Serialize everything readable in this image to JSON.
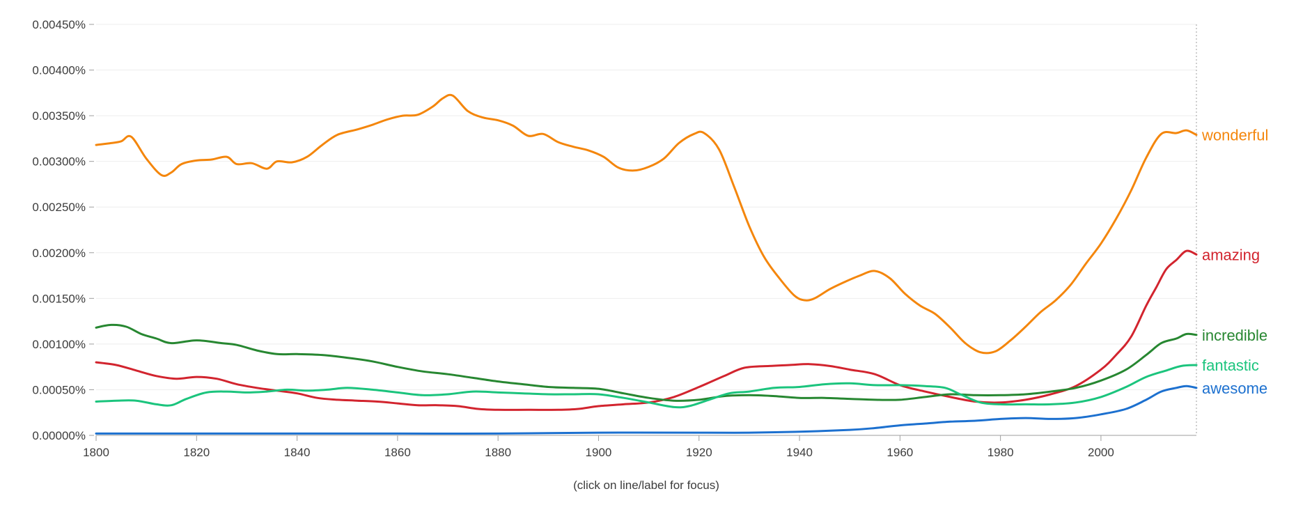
{
  "chart_data": {
    "type": "line",
    "title": "",
    "xlabel": "",
    "ylabel": "",
    "xlim": [
      1800,
      2019
    ],
    "ylim": [
      0,
      0.0045
    ],
    "x_ticks": [
      1800,
      1820,
      1840,
      1860,
      1880,
      1900,
      1920,
      1940,
      1960,
      1980,
      2000
    ],
    "x_tick_labels": [
      "1800",
      "1820",
      "1840",
      "1860",
      "1880",
      "1900",
      "1920",
      "1940",
      "1960",
      "1980",
      "2000"
    ],
    "y_ticks": [
      0,
      0.0005,
      0.001,
      0.0015,
      0.002,
      0.0025,
      0.003,
      0.0035,
      0.004,
      0.0045
    ],
    "y_tick_labels": [
      "0.00000%",
      "0.00050%",
      "0.00100%",
      "0.00150%",
      "0.00200%",
      "0.00250%",
      "0.00300%",
      "0.00350%",
      "0.00400%",
      "0.00450%"
    ],
    "grid": true,
    "legend": "right-end-labels",
    "footnote": "(click on line/label for focus)",
    "series": [
      {
        "name": "wonderful",
        "color": "#f4860c",
        "points": [
          [
            1800,
            0.00318
          ],
          [
            1803,
            0.0032
          ],
          [
            1805,
            0.00322
          ],
          [
            1807,
            0.00327
          ],
          [
            1810,
            0.00303
          ],
          [
            1813,
            0.00285
          ],
          [
            1815,
            0.00288
          ],
          [
            1817,
            0.00297
          ],
          [
            1820,
            0.00301
          ],
          [
            1823,
            0.00302
          ],
          [
            1826,
            0.00305
          ],
          [
            1828,
            0.00297
          ],
          [
            1831,
            0.00298
          ],
          [
            1834,
            0.00292
          ],
          [
            1836,
            0.003
          ],
          [
            1839,
            0.00299
          ],
          [
            1842,
            0.00305
          ],
          [
            1845,
            0.00318
          ],
          [
            1848,
            0.00329
          ],
          [
            1852,
            0.00335
          ],
          [
            1855,
            0.0034
          ],
          [
            1858,
            0.00346
          ],
          [
            1861,
            0.0035
          ],
          [
            1864,
            0.00351
          ],
          [
            1867,
            0.0036
          ],
          [
            1869,
            0.00369
          ],
          [
            1871,
            0.00372
          ],
          [
            1874,
            0.00355
          ],
          [
            1877,
            0.00348
          ],
          [
            1880,
            0.00345
          ],
          [
            1883,
            0.00339
          ],
          [
            1886,
            0.00328
          ],
          [
            1889,
            0.0033
          ],
          [
            1892,
            0.00321
          ],
          [
            1895,
            0.00316
          ],
          [
            1898,
            0.00312
          ],
          [
            1901,
            0.00305
          ],
          [
            1904,
            0.00293
          ],
          [
            1907,
            0.0029
          ],
          [
            1910,
            0.00294
          ],
          [
            1913,
            0.00303
          ],
          [
            1916,
            0.0032
          ],
          [
            1919,
            0.0033
          ],
          [
            1921,
            0.00331
          ],
          [
            1924,
            0.00313
          ],
          [
            1927,
            0.00272
          ],
          [
            1930,
            0.00229
          ],
          [
            1933,
            0.00195
          ],
          [
            1936,
            0.00172
          ],
          [
            1939,
            0.00153
          ],
          [
            1941,
            0.00148
          ],
          [
            1943,
            0.0015
          ],
          [
            1946,
            0.0016
          ],
          [
            1949,
            0.00168
          ],
          [
            1952,
            0.00175
          ],
          [
            1955,
            0.0018
          ],
          [
            1958,
            0.00172
          ],
          [
            1961,
            0.00155
          ],
          [
            1964,
            0.00142
          ],
          [
            1967,
            0.00133
          ],
          [
            1970,
            0.00118
          ],
          [
            1973,
            0.00101
          ],
          [
            1976,
            0.00091
          ],
          [
            1979,
            0.00092
          ],
          [
            1982,
            0.00104
          ],
          [
            1985,
            0.00119
          ],
          [
            1988,
            0.00135
          ],
          [
            1991,
            0.00148
          ],
          [
            1994,
            0.00165
          ],
          [
            1997,
            0.00188
          ],
          [
            2000,
            0.0021
          ],
          [
            2003,
            0.00237
          ],
          [
            2006,
            0.00268
          ],
          [
            2009,
            0.00304
          ],
          [
            2012,
            0.0033
          ],
          [
            2015,
            0.00331
          ],
          [
            2017,
            0.00334
          ],
          [
            2019,
            0.00329
          ]
        ]
      },
      {
        "name": "amazing",
        "color": "#d2242e",
        "points": [
          [
            1800,
            0.0008
          ],
          [
            1804,
            0.00077
          ],
          [
            1808,
            0.00071
          ],
          [
            1812,
            0.00065
          ],
          [
            1816,
            0.00062
          ],
          [
            1820,
            0.00064
          ],
          [
            1824,
            0.00062
          ],
          [
            1828,
            0.00056
          ],
          [
            1832,
            0.00052
          ],
          [
            1836,
            0.00049
          ],
          [
            1840,
            0.00046
          ],
          [
            1844,
            0.00041
          ],
          [
            1848,
            0.00039
          ],
          [
            1852,
            0.00038
          ],
          [
            1856,
            0.00037
          ],
          [
            1860,
            0.00035
          ],
          [
            1864,
            0.00033
          ],
          [
            1868,
            0.00033
          ],
          [
            1872,
            0.00032
          ],
          [
            1876,
            0.00029
          ],
          [
            1880,
            0.00028
          ],
          [
            1886,
            0.00028
          ],
          [
            1892,
            0.00028
          ],
          [
            1896,
            0.00029
          ],
          [
            1900,
            0.00032
          ],
          [
            1905,
            0.00034
          ],
          [
            1910,
            0.00036
          ],
          [
            1915,
            0.00042
          ],
          [
            1920,
            0.00053
          ],
          [
            1925,
            0.00065
          ],
          [
            1929,
            0.00074
          ],
          [
            1934,
            0.00076
          ],
          [
            1938,
            0.00077
          ],
          [
            1942,
            0.00078
          ],
          [
            1946,
            0.00076
          ],
          [
            1950,
            0.00072
          ],
          [
            1955,
            0.00067
          ],
          [
            1960,
            0.00055
          ],
          [
            1965,
            0.00048
          ],
          [
            1970,
            0.00042
          ],
          [
            1975,
            0.00037
          ],
          [
            1980,
            0.00036
          ],
          [
            1985,
            0.00039
          ],
          [
            1990,
            0.00045
          ],
          [
            1995,
            0.00054
          ],
          [
            2000,
            0.00072
          ],
          [
            2003,
            0.00088
          ],
          [
            2006,
            0.00108
          ],
          [
            2009,
            0.00142
          ],
          [
            2011,
            0.00162
          ],
          [
            2013,
            0.00182
          ],
          [
            2015,
            0.00192
          ],
          [
            2017,
            0.00202
          ],
          [
            2019,
            0.00198
          ]
        ]
      },
      {
        "name": "incredible",
        "color": "#278731",
        "points": [
          [
            1800,
            0.00118
          ],
          [
            1803,
            0.00121
          ],
          [
            1806,
            0.00119
          ],
          [
            1809,
            0.00111
          ],
          [
            1812,
            0.00106
          ],
          [
            1815,
            0.00101
          ],
          [
            1820,
            0.00104
          ],
          [
            1825,
            0.00101
          ],
          [
            1828,
            0.00099
          ],
          [
            1832,
            0.00093
          ],
          [
            1836,
            0.00089
          ],
          [
            1840,
            0.00089
          ],
          [
            1845,
            0.00088
          ],
          [
            1850,
            0.00085
          ],
          [
            1855,
            0.00081
          ],
          [
            1860,
            0.00075
          ],
          [
            1865,
            0.0007
          ],
          [
            1870,
            0.00067
          ],
          [
            1875,
            0.00063
          ],
          [
            1880,
            0.00059
          ],
          [
            1885,
            0.00056
          ],
          [
            1890,
            0.00053
          ],
          [
            1895,
            0.00052
          ],
          [
            1900,
            0.00051
          ],
          [
            1905,
            0.00046
          ],
          [
            1910,
            0.00041
          ],
          [
            1915,
            0.00038
          ],
          [
            1920,
            0.00039
          ],
          [
            1925,
            0.00043
          ],
          [
            1930,
            0.00044
          ],
          [
            1935,
            0.00043
          ],
          [
            1940,
            0.00041
          ],
          [
            1945,
            0.00041
          ],
          [
            1950,
            0.0004
          ],
          [
            1955,
            0.00039
          ],
          [
            1960,
            0.00039
          ],
          [
            1965,
            0.00042
          ],
          [
            1970,
            0.00045
          ],
          [
            1975,
            0.00044
          ],
          [
            1980,
            0.00044
          ],
          [
            1985,
            0.00045
          ],
          [
            1990,
            0.00048
          ],
          [
            1995,
            0.00052
          ],
          [
            2000,
            0.0006
          ],
          [
            2005,
            0.00072
          ],
          [
            2009,
            0.00088
          ],
          [
            2012,
            0.00101
          ],
          [
            2015,
            0.00106
          ],
          [
            2017,
            0.00111
          ],
          [
            2019,
            0.0011
          ]
        ]
      },
      {
        "name": "fantastic",
        "color": "#1bc47d",
        "points": [
          [
            1800,
            0.00037
          ],
          [
            1804,
            0.00038
          ],
          [
            1808,
            0.00038
          ],
          [
            1812,
            0.00034
          ],
          [
            1815,
            0.00033
          ],
          [
            1818,
            0.0004
          ],
          [
            1822,
            0.00047
          ],
          [
            1826,
            0.00048
          ],
          [
            1830,
            0.00047
          ],
          [
            1834,
            0.00048
          ],
          [
            1838,
            0.0005
          ],
          [
            1842,
            0.00049
          ],
          [
            1846,
            0.0005
          ],
          [
            1850,
            0.00052
          ],
          [
            1855,
            0.0005
          ],
          [
            1860,
            0.00047
          ],
          [
            1865,
            0.00044
          ],
          [
            1870,
            0.00045
          ],
          [
            1875,
            0.00048
          ],
          [
            1880,
            0.00047
          ],
          [
            1885,
            0.00046
          ],
          [
            1890,
            0.00045
          ],
          [
            1895,
            0.00045
          ],
          [
            1900,
            0.00045
          ],
          [
            1905,
            0.00041
          ],
          [
            1910,
            0.00036
          ],
          [
            1915,
            0.00031
          ],
          [
            1918,
            0.00032
          ],
          [
            1922,
            0.00039
          ],
          [
            1926,
            0.00046
          ],
          [
            1930,
            0.00048
          ],
          [
            1935,
            0.00052
          ],
          [
            1940,
            0.00053
          ],
          [
            1945,
            0.00056
          ],
          [
            1950,
            0.00057
          ],
          [
            1955,
            0.00055
          ],
          [
            1960,
            0.00055
          ],
          [
            1965,
            0.00054
          ],
          [
            1969,
            0.00052
          ],
          [
            1972,
            0.00045
          ],
          [
            1976,
            0.00036
          ],
          [
            1980,
            0.00034
          ],
          [
            1985,
            0.00034
          ],
          [
            1990,
            0.00034
          ],
          [
            1995,
            0.00036
          ],
          [
            2000,
            0.00042
          ],
          [
            2005,
            0.00053
          ],
          [
            2009,
            0.00064
          ],
          [
            2013,
            0.00071
          ],
          [
            2016,
            0.00076
          ],
          [
            2019,
            0.00077
          ]
        ]
      },
      {
        "name": "awesome",
        "color": "#1c70cf",
        "points": [
          [
            1800,
            2e-05
          ],
          [
            1820,
            2e-05
          ],
          [
            1840,
            2e-05
          ],
          [
            1860,
            2e-05
          ],
          [
            1880,
            2e-05
          ],
          [
            1900,
            3e-05
          ],
          [
            1920,
            3e-05
          ],
          [
            1930,
            3e-05
          ],
          [
            1940,
            4e-05
          ],
          [
            1950,
            6e-05
          ],
          [
            1955,
            8e-05
          ],
          [
            1960,
            0.00011
          ],
          [
            1965,
            0.00013
          ],
          [
            1970,
            0.00015
          ],
          [
            1975,
            0.00016
          ],
          [
            1980,
            0.00018
          ],
          [
            1985,
            0.00019
          ],
          [
            1990,
            0.00018
          ],
          [
            1995,
            0.00019
          ],
          [
            2000,
            0.00023
          ],
          [
            2005,
            0.00029
          ],
          [
            2009,
            0.00039
          ],
          [
            2012,
            0.00048
          ],
          [
            2015,
            0.00052
          ],
          [
            2017,
            0.00054
          ],
          [
            2019,
            0.00052
          ]
        ]
      }
    ]
  }
}
